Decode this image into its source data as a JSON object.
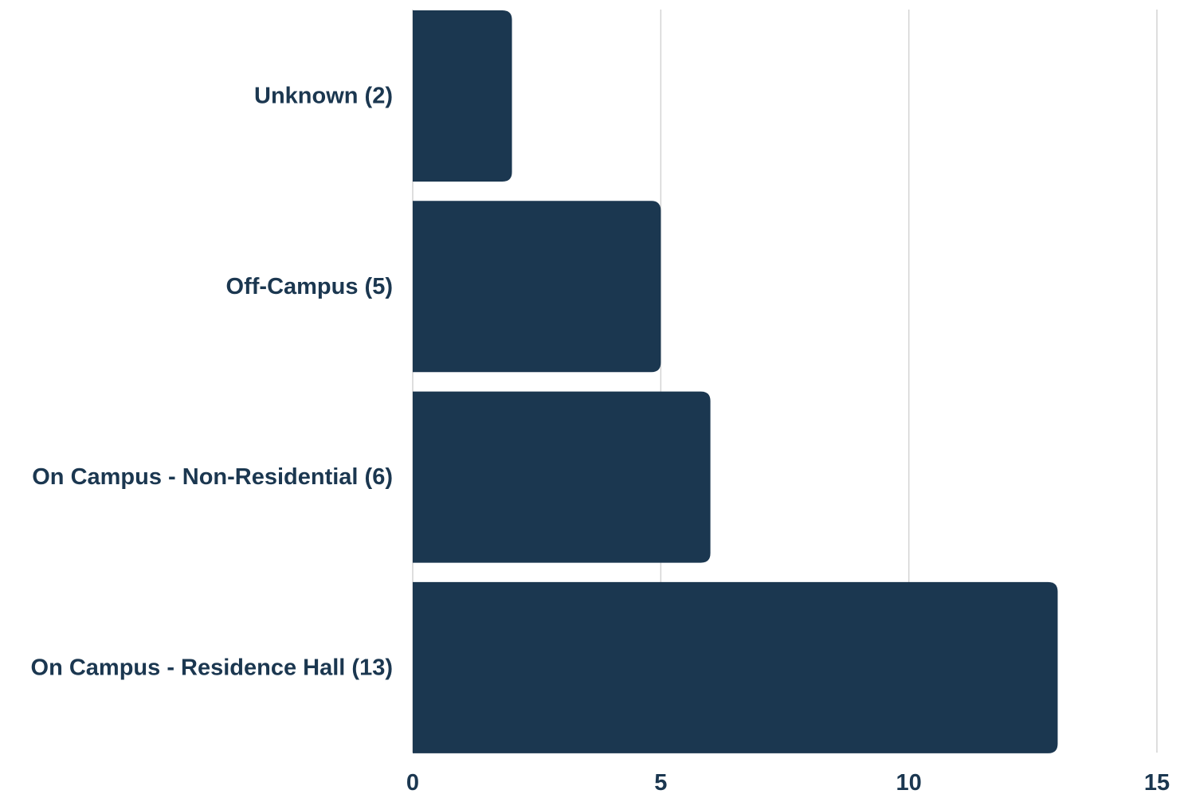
{
  "chart_data": {
    "type": "bar",
    "orientation": "horizontal",
    "categories": [
      "Unknown (2)",
      "Off-Campus (5)",
      "On Campus - Non-Residential (6)",
      "On Campus - Residence Hall (13)"
    ],
    "values": [
      2,
      5,
      6,
      13
    ],
    "xlim": [
      0,
      15
    ],
    "xticks": [
      "0",
      "5",
      "10",
      "15"
    ],
    "grid": "vertical",
    "title": "",
    "xlabel": "",
    "ylabel": "",
    "colors": {
      "bar": "#1b3750",
      "text": "#1b3750",
      "grid": "#d4d4d4"
    }
  }
}
